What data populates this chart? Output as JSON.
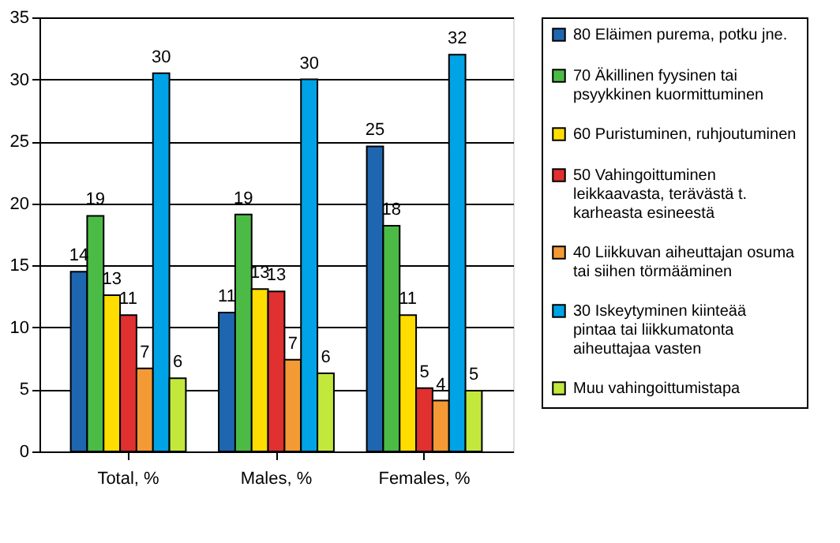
{
  "chart_data": {
    "type": "bar",
    "categories": [
      "Total, %",
      "Males, %",
      "Females, %"
    ],
    "series": [
      {
        "name": "80 Eläimen purema, potku jne.",
        "color": "#1f66b0",
        "values": [
          14.5,
          11.2,
          24.6
        ],
        "value_labels": [
          "14",
          "11",
          "25"
        ]
      },
      {
        "name": "70 Äkillinen fyysinen tai psyykkinen kuormittuminen",
        "color": "#4cbb46",
        "values": [
          19.0,
          19.1,
          18.2
        ],
        "value_labels": [
          "19",
          "19",
          "18"
        ]
      },
      {
        "name": "60 Puristuminen, ruhjoutuminen",
        "color": "#ffdd00",
        "values": [
          12.6,
          13.1,
          11.0
        ],
        "value_labels": [
          "13",
          "13",
          "11"
        ]
      },
      {
        "name": "50 Vahingoittuminen leikkaavasta, terävästä t. karheasta esineestä",
        "color": "#e03030",
        "values": [
          11.0,
          12.9,
          5.1
        ],
        "value_labels": [
          "11",
          "13",
          "5"
        ]
      },
      {
        "name": "40 Liikkuvan aiheuttajan osuma tai siihen törmääminen",
        "color": "#f49a35",
        "values": [
          6.7,
          7.4,
          4.1
        ],
        "value_labels": [
          "7",
          "7",
          "4"
        ]
      },
      {
        "name": "30 Iskeytyminen kiinteää pintaa tai liikkumatonta aiheuttajaa vasten",
        "color": "#00a3e6",
        "values": [
          30.5,
          30.0,
          32.0
        ],
        "value_labels": [
          "30",
          "30",
          "32"
        ]
      },
      {
        "name": "Muu vahingoittumistapa",
        "color": "#c2e83c",
        "values": [
          5.9,
          6.3,
          4.9
        ],
        "value_labels": [
          "6",
          "6",
          "5"
        ]
      }
    ],
    "ylim": [
      0,
      35
    ],
    "yticks": [
      0,
      5,
      10,
      15,
      20,
      25,
      30,
      35
    ],
    "grid": "y",
    "legend": "right"
  }
}
